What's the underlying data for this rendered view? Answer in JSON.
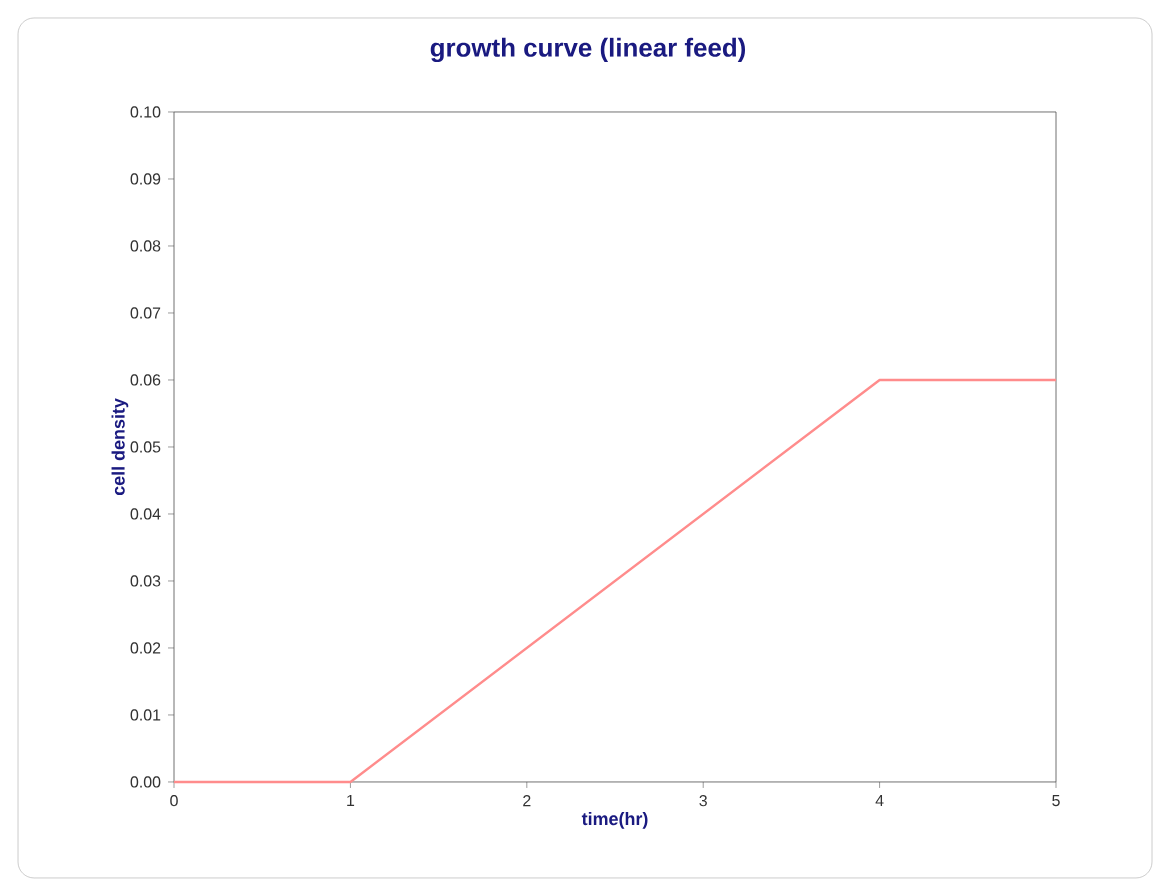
{
  "chart_data": {
    "type": "line",
    "title": "growth curve (linear feed)",
    "xlabel": "time(hr)",
    "ylabel": "cell density",
    "series": [
      {
        "color": "#ff8c8c",
        "x": [
          0,
          1,
          4,
          5
        ],
        "values": [
          0,
          0,
          0.06,
          0.06
        ]
      }
    ],
    "xlim": [
      0,
      5
    ],
    "xticks": [
      0,
      1,
      2,
      3,
      4,
      5
    ],
    "ylim": [
      0,
      0.1
    ],
    "yticks": [
      {
        "value": 0,
        "label": "0.00"
      },
      {
        "value": 0.01,
        "label": "0.01"
      },
      {
        "value": 0.02,
        "label": "0.02"
      },
      {
        "value": 0.03,
        "label": "0.03"
      },
      {
        "value": 0.04,
        "label": "0.04"
      },
      {
        "value": 0.05,
        "label": "0.05"
      },
      {
        "value": 0.06,
        "label": "0.06"
      },
      {
        "value": 0.07,
        "label": "0.07"
      },
      {
        "value": 0.08,
        "label": "0.08"
      },
      {
        "value": 0.09,
        "label": "0.09"
      },
      {
        "value": 0.1,
        "label": "0.10"
      }
    ],
    "grid": false,
    "marker": "none",
    "line_style": "solid"
  }
}
